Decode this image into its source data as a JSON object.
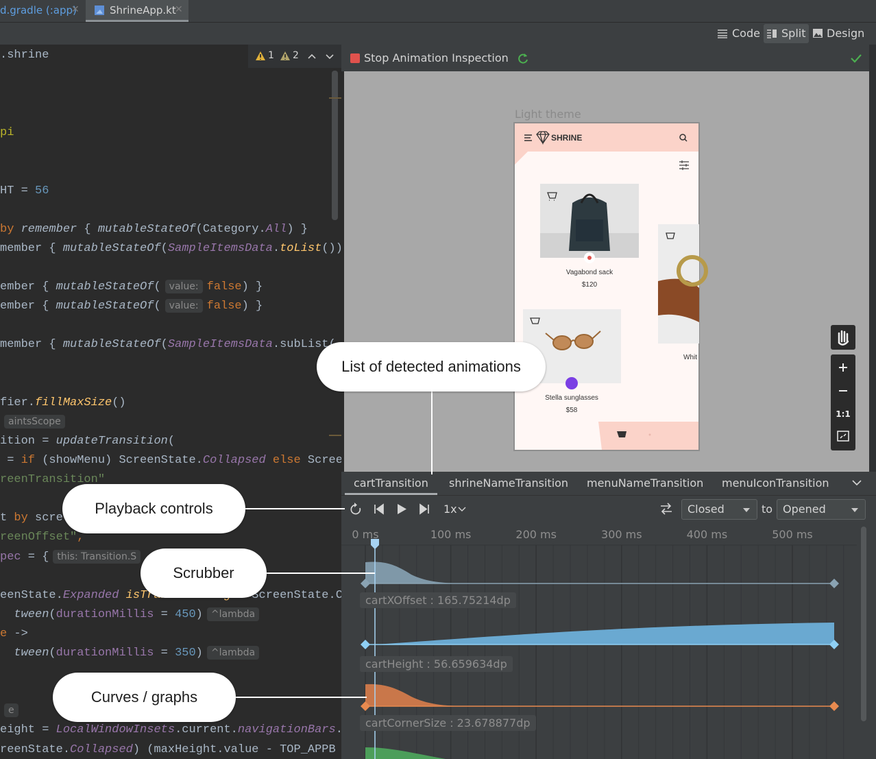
{
  "tabs": [
    "d.gradle (:app)",
    "ShrineApp.kt"
  ],
  "view_modes": [
    "Code",
    "Split",
    "Design"
  ],
  "editor": {
    "breadcrumb": ".shrine",
    "warnings": [
      1,
      2
    ],
    "lines": [
      [
        "pi"
      ],
      [
        "HT",
        " = ",
        "56"
      ],
      [
        "by ",
        "remember",
        " { ",
        "mutableStateOf",
        "(Category.",
        "All",
        ") }"
      ],
      [
        "member { ",
        "mutableStateOf",
        "(",
        "SampleItemsData",
        ".",
        "toList",
        "())"
      ],
      [
        "ember { ",
        "mutableStateOf",
        "(",
        "value:",
        "false",
        ") }"
      ],
      [
        "ember { ",
        "mutableStateOf",
        "(",
        "value:",
        "false",
        ") }"
      ],
      [
        "member { ",
        "mutableStateOf",
        "(",
        "SampleItemsData",
        ".subList("
      ],
      [
        "fier.",
        "fillMaxSize",
        "()"
      ],
      [
        "aintsScope"
      ],
      [
        "ition = ",
        "updateTransition",
        "("
      ],
      [
        " = ",
        "if",
        " (",
        "showMenu",
        ") ScreenState.",
        "Collapsed",
        " else ",
        "Scree"
      ],
      [
        "reenTransition\""
      ],
      [
        "t ",
        "by",
        " scre"
      ],
      [
        "reenOffset\"",
        ","
      ],
      [
        "pec",
        " = {",
        "this: Transition.S"
      ],
      [
        "eenState.",
        "Expanded",
        " ",
        "isTransitioningTo",
        " ScreenState.C"
      ],
      [
        "  ",
        "tween",
        "(",
        "durationMillis",
        " = ",
        "450",
        ")",
        "^lambda"
      ],
      [
        "e",
        " ->"
      ],
      [
        "  ",
        "tween",
        "(",
        "durationMillis",
        " = ",
        "350",
        ")",
        "^lambda"
      ],
      [
        "e"
      ],
      [
        "eight = ",
        "LocalWindowInsets",
        ".current.",
        "navigationBars",
        "."
      ],
      [
        "reenState.",
        "Collapsed",
        ") (maxHeight.value - TOP_APPB"
      ]
    ]
  },
  "inspector": {
    "title": "Stop Animation Inspection",
    "preview_label": "Light theme",
    "app": {
      "brand": "SHRINE",
      "products": [
        {
          "name": "Vagabond sack",
          "price": "$120"
        },
        {
          "name": "Stella sunglasses",
          "price": "$58"
        },
        {
          "name": "Whit"
        }
      ]
    },
    "zoom_reset": "1:1"
  },
  "animations": [
    "cartTransition",
    "shrineNameTransition",
    "menuNameTransition",
    "menuIconTransition"
  ],
  "playback": {
    "speed": "1x",
    "from_state": "Closed",
    "to_label": "to",
    "to_state": "Opened"
  },
  "timeline": {
    "ticks": [
      {
        "value": 0,
        "label": "0 ms"
      },
      {
        "value": 100,
        "label": "100 ms"
      },
      {
        "value": 200,
        "label": "200 ms"
      },
      {
        "value": 300,
        "label": "300 ms"
      },
      {
        "value": 400,
        "label": "400 ms"
      },
      {
        "value": 500,
        "label": "500 ms"
      }
    ],
    "properties": [
      "cartXOffset : 165.75214dp",
      "cartHeight : 56.659634dp",
      "cartCornerSize : 23.678877dp"
    ]
  },
  "callouts": [
    "List of detected animations",
    "Playback controls",
    "Scrubber",
    "Curves / graphs"
  ]
}
